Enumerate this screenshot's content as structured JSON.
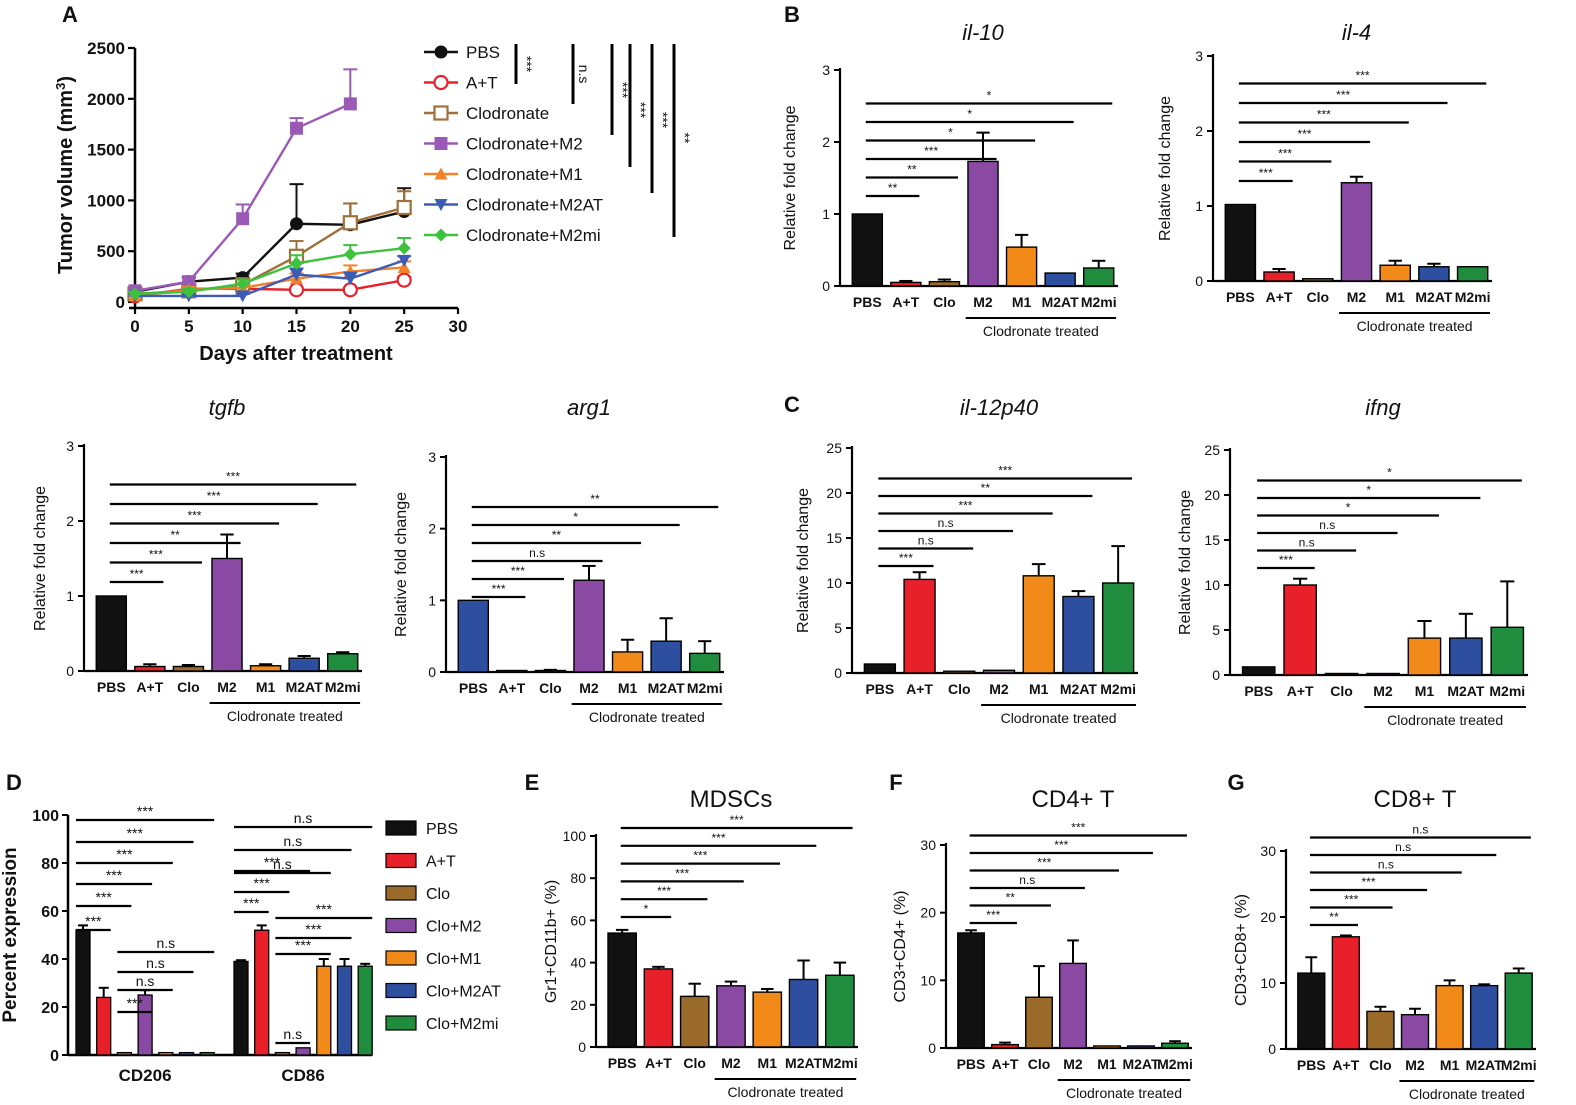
{
  "colors": {
    "PBS": "#111111",
    "A+T": "#e8202a",
    "Clo": "#9a6a2a",
    "M2": "#8a4aa3",
    "M1": "#f28a1a",
    "M2AT": "#2e4ea0",
    "M2mi": "#1f8c3e",
    "lineA": {
      "PBS": "#111111",
      "A+T": "#e8202a",
      "Clodronate": "#a0703a",
      "Clodronate+M2": "#9b59b6",
      "Clodronate+M1": "#f2812a",
      "Clodronate+M2AT": "#3b5bb5",
      "Clodronate+M2mi": "#3cc23c"
    }
  },
  "group_label": "Clodronate treated",
  "chart_data": [
    {
      "id": "A",
      "panel_label": "A",
      "type": "line",
      "xlabel": "Days after treatment",
      "ylabel_parts": [
        "Tumor volume (mm",
        "3",
        ")"
      ],
      "xlim": [
        0,
        30
      ],
      "ylim": [
        0,
        2500
      ],
      "xticks": [
        "0",
        "5",
        "10",
        "15",
        "20",
        "25",
        "30"
      ],
      "yticks": [
        "0",
        "500",
        "1000",
        "1500",
        "2000",
        "2500"
      ],
      "series": [
        {
          "name": "PBS",
          "marker": "circle",
          "x": [
            0,
            5,
            10,
            15,
            20,
            25
          ],
          "y": [
            100,
            200,
            240,
            770,
            760,
            890
          ],
          "err": [
            30,
            40,
            40,
            390,
            210,
            230
          ]
        },
        {
          "name": "A+T",
          "marker": "circle-open",
          "x": [
            0,
            5,
            10,
            15,
            20,
            25
          ],
          "y": [
            60,
            130,
            130,
            120,
            120,
            215
          ],
          "err": [
            20,
            30,
            20,
            20,
            20,
            30
          ]
        },
        {
          "name": "Clodronate",
          "marker": "square-open",
          "x": [
            0,
            5,
            10,
            15,
            20,
            25
          ],
          "y": [
            80,
            110,
            170,
            450,
            780,
            930
          ],
          "err": [
            30,
            30,
            40,
            150,
            190,
            160
          ]
        },
        {
          "name": "Clodronate+M2",
          "marker": "square",
          "x": [
            0,
            5,
            10,
            15,
            20
          ],
          "y": [
            110,
            200,
            820,
            1710,
            1950
          ],
          "err": [
            30,
            50,
            140,
            100,
            340
          ]
        },
        {
          "name": "Clodronate+M1",
          "marker": "triangle-up",
          "x": [
            0,
            5,
            10,
            15,
            20,
            25
          ],
          "y": [
            60,
            120,
            140,
            230,
            300,
            340
          ],
          "err": [
            20,
            30,
            30,
            50,
            60,
            60
          ]
        },
        {
          "name": "Clodronate+M2AT",
          "marker": "triangle-down",
          "x": [
            0,
            5,
            10,
            15,
            20,
            25
          ],
          "y": [
            60,
            60,
            60,
            270,
            230,
            410
          ],
          "err": [
            20,
            20,
            20,
            60,
            60,
            40
          ]
        },
        {
          "name": "Clodronate+M2mi",
          "marker": "diamond",
          "x": [
            0,
            5,
            10,
            15,
            20,
            25
          ],
          "y": [
            80,
            100,
            180,
            380,
            470,
            530
          ],
          "err": [
            20,
            30,
            40,
            80,
            90,
            100
          ]
        }
      ],
      "stat_labels": [
        "***",
        "n.s",
        "***",
        "***",
        "***",
        "**"
      ]
    },
    {
      "id": "B1",
      "panel_label": "B",
      "type": "bar",
      "title": "il-10",
      "title_style": "italic",
      "ylabel": "Relative fold change",
      "ylim": [
        0,
        3
      ],
      "yticks": [
        "0",
        "1",
        "2",
        "3"
      ],
      "categories": [
        "PBS",
        "A+T",
        "Clo",
        "M2",
        "M1",
        "M2AT",
        "M2mi"
      ],
      "values": [
        1.0,
        0.05,
        0.06,
        1.73,
        0.54,
        0.18,
        0.25
      ],
      "err": [
        0,
        0.02,
        0.03,
        0.4,
        0.17,
        0,
        0.1
      ],
      "sig": [
        "**",
        "**",
        "***",
        "*",
        "*",
        "*"
      ]
    },
    {
      "id": "B2",
      "type": "bar",
      "title": "il-4",
      "title_style": "italic",
      "ylabel": "Relative fold change",
      "ylim": [
        0,
        3
      ],
      "yticks": [
        "0",
        "1",
        "2",
        "3"
      ],
      "categories": [
        "PBS",
        "A+T",
        "Clo",
        "M2",
        "M1",
        "M2AT",
        "M2mi"
      ],
      "values": [
        1.02,
        0.12,
        0.03,
        1.31,
        0.21,
        0.19,
        0.19
      ],
      "err": [
        0,
        0.04,
        0,
        0.08,
        0.06,
        0.04,
        0
      ],
      "sig": [
        "***",
        "***",
        "***",
        "***",
        "***",
        "***"
      ]
    },
    {
      "id": "Btgfb",
      "type": "bar",
      "title": "tgfb",
      "title_style": "italic",
      "ylabel": "Relative fold change",
      "ylim": [
        0,
        3
      ],
      "yticks": [
        "0",
        "1",
        "2",
        "3"
      ],
      "categories": [
        "PBS",
        "A+T",
        "Clo",
        "M2",
        "M1",
        "M2AT",
        "M2mi"
      ],
      "values": [
        1.0,
        0.06,
        0.06,
        1.5,
        0.07,
        0.17,
        0.23
      ],
      "err": [
        0,
        0.03,
        0.02,
        0.32,
        0.02,
        0.03,
        0.02
      ],
      "sig": [
        "***",
        "***",
        "**",
        "***",
        "***",
        "***"
      ]
    },
    {
      "id": "Barg1",
      "type": "bar",
      "title": "arg1",
      "title_style": "italic",
      "ylabel": "Relative fold change",
      "ylim": [
        0,
        3
      ],
      "yticks": [
        "0",
        "1",
        "2",
        "3"
      ],
      "categories": [
        "PBS",
        "A+T",
        "Clo",
        "M2",
        "M1",
        "M2AT",
        "M2mi"
      ],
      "values": [
        1.0,
        0.02,
        0.02,
        1.28,
        0.28,
        0.43,
        0.26
      ],
      "err": [
        0,
        0,
        0.01,
        0.2,
        0.17,
        0.32,
        0.17
      ],
      "colors": [
        "#2e4ea0",
        "#2e4ea0",
        "#2e4ea0",
        "#8a4aa3",
        "#f28a1a",
        "#2e4ea0",
        "#1f8c3e"
      ],
      "sig": [
        "***",
        "***",
        "n.s",
        "**",
        "*",
        "**"
      ]
    },
    {
      "id": "C1",
      "panel_label": "C",
      "type": "bar",
      "title": "il-12p40",
      "title_style": "italic",
      "ylabel": "Relative fold change",
      "ylim": [
        0,
        25
      ],
      "yticks": [
        "0",
        "5",
        "10",
        "15",
        "20",
        "25"
      ],
      "categories": [
        "PBS",
        "A+T",
        "Clo",
        "M2",
        "M1",
        "M2AT",
        "M2mi"
      ],
      "values": [
        1.0,
        10.4,
        0.2,
        0.3,
        10.8,
        8.5,
        10.0
      ],
      "err": [
        0,
        0.8,
        0,
        0,
        1.3,
        0.6,
        4.1
      ],
      "sig": [
        "***",
        "n.s",
        "n.s",
        "***",
        "**",
        "***"
      ]
    },
    {
      "id": "C2",
      "type": "bar",
      "title": "ifng",
      "title_style": "italic",
      "ylabel": "Relative fold change",
      "ylim": [
        0,
        25
      ],
      "yticks": [
        "0",
        "5",
        "10",
        "15",
        "20",
        "25"
      ],
      "categories": [
        "PBS",
        "A+T",
        "Clo",
        "M2",
        "M1",
        "M2AT",
        "M2mi"
      ],
      "values": [
        0.9,
        10.0,
        0.05,
        0.05,
        4.1,
        4.1,
        5.3
      ],
      "err": [
        0,
        0.7,
        0,
        0,
        1.9,
        2.7,
        5.1
      ],
      "sig": [
        "***",
        "n.s",
        "n.s",
        "*",
        "*",
        "*"
      ]
    },
    {
      "id": "D",
      "panel_label": "D",
      "type": "grouped-bar",
      "ylabel": "Percent expression",
      "ylim": [
        0,
        100
      ],
      "yticks": [
        "0",
        "20",
        "40",
        "60",
        "80",
        "100"
      ],
      "groups": [
        "CD206",
        "CD86"
      ],
      "series": [
        {
          "name": "PBS",
          "values": [
            52,
            39
          ],
          "err": [
            2,
            0.5
          ]
        },
        {
          "name": "A+T",
          "values": [
            24,
            52
          ],
          "err": [
            4,
            2
          ]
        },
        {
          "name": "Clo",
          "values": [
            1,
            1
          ],
          "err": [
            0,
            0
          ]
        },
        {
          "name": "Clo+M2",
          "values": [
            25,
            3
          ],
          "err": [
            2,
            0
          ]
        },
        {
          "name": "Clo+M1",
          "values": [
            1,
            37
          ],
          "err": [
            0,
            3
          ]
        },
        {
          "name": "Clo+M2AT",
          "values": [
            1,
            37
          ],
          "err": [
            0,
            3
          ]
        },
        {
          "name": "Clo+M2mi",
          "values": [
            1,
            37
          ],
          "err": [
            0,
            1
          ]
        }
      ],
      "sig_cd206": [
        "***",
        "***",
        "***",
        "***",
        "***",
        "***",
        "n.s",
        "n.s",
        "n.s",
        "***"
      ],
      "sig_cd86": [
        "n.s",
        "n.s",
        "n.s",
        "***",
        "***",
        "***",
        "***",
        "***",
        "***",
        "n.s"
      ]
    },
    {
      "id": "E",
      "panel_label": "E",
      "type": "bar",
      "title": "MDSCs",
      "title_style": "normal",
      "ylabel": "Gr1+CD11b+ (%)",
      "ylim": [
        0,
        100
      ],
      "yticks": [
        "0",
        "20",
        "40",
        "60",
        "80",
        "100"
      ],
      "categories": [
        "PBS",
        "A+T",
        "Clo",
        "M2",
        "M1",
        "M2AT",
        "M2mi"
      ],
      "values": [
        54,
        37,
        24,
        29,
        26,
        32,
        34
      ],
      "err": [
        1.5,
        1,
        6,
        2,
        1.5,
        9,
        6
      ],
      "sig": [
        "*",
        "***",
        "***",
        "***",
        "***",
        "***"
      ]
    },
    {
      "id": "F",
      "panel_label": "F",
      "type": "bar",
      "title": "CD4+ T",
      "title_style": "normal",
      "ylabel": "CD3+CD4+ (%)",
      "ylim": [
        0,
        30
      ],
      "yticks": [
        "0",
        "10",
        "20",
        "30"
      ],
      "categories": [
        "PBS",
        "A+T",
        "Clo",
        "M2",
        "M1",
        "M2AT",
        "M2mi"
      ],
      "values": [
        17,
        0.5,
        7.5,
        12.5,
        0.3,
        0.3,
        0.7
      ],
      "err": [
        0.4,
        0.3,
        4.6,
        3.4,
        0,
        0,
        0.3
      ],
      "sig": [
        "***",
        "**",
        "n.s",
        "***",
        "***",
        "***"
      ]
    },
    {
      "id": "G",
      "panel_label": "G",
      "type": "bar",
      "title": "CD8+ T",
      "title_style": "normal",
      "ylabel": "CD3+CD8+ (%)",
      "ylim": [
        0,
        30
      ],
      "yticks": [
        "0",
        "10",
        "20",
        "30"
      ],
      "categories": [
        "PBS",
        "A+T",
        "Clo",
        "M2",
        "M1",
        "M2AT",
        "M2mi"
      ],
      "values": [
        11.5,
        17,
        5.7,
        5.2,
        9.6,
        9.6,
        11.5
      ],
      "err": [
        2.4,
        0.2,
        0.7,
        0.9,
        0.8,
        0.2,
        0.7
      ],
      "sig": [
        "**",
        "***",
        "***",
        "n.s",
        "n.s",
        "n.s"
      ]
    }
  ]
}
